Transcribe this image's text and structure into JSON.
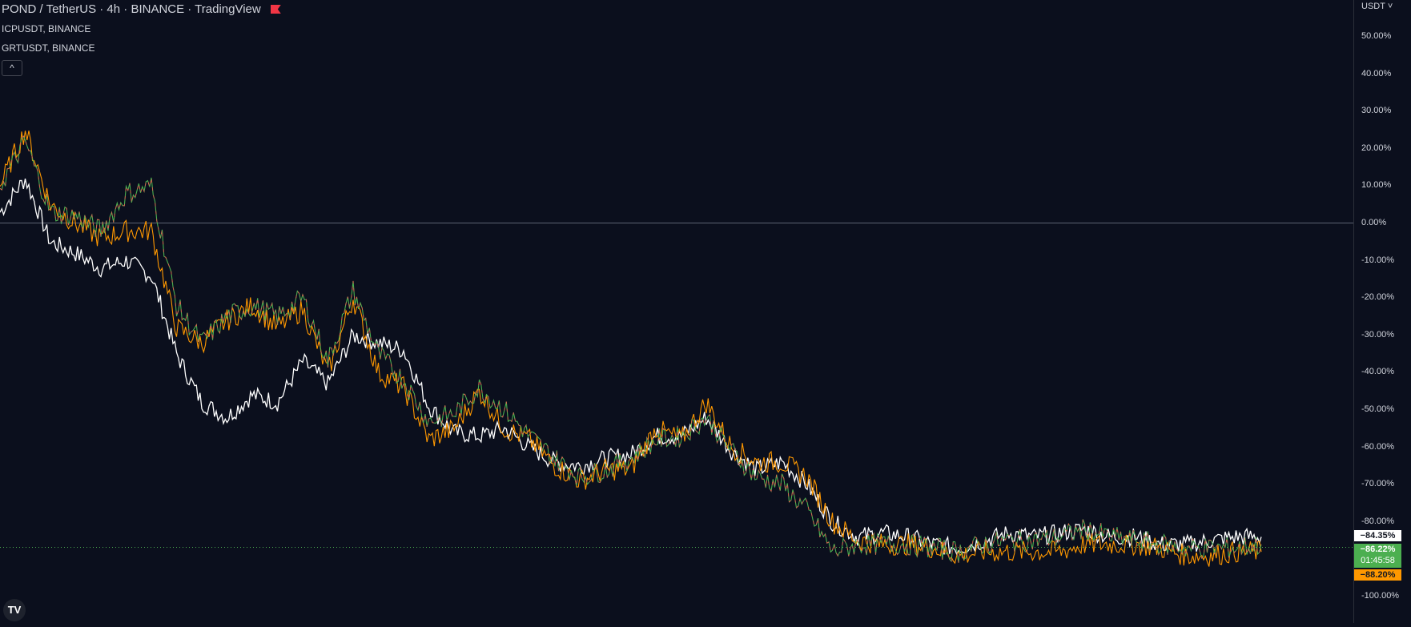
{
  "header": {
    "title": "POND / TetherUS · 4h · BINANCE · TradingView",
    "compare_1": "ICPUSDT, BINANCE",
    "compare_2": "GRTUSDT, BINANCE",
    "collapse_icon": "chevron-up-icon"
  },
  "price_scale": {
    "currency": "USDT",
    "ticks": [
      "50.00%",
      "40.00%",
      "30.00%",
      "20.00%",
      "10.00%",
      "0.00%",
      "-10.00%",
      "-20.00%",
      "-30.00%",
      "-40.00%",
      "-50.00%",
      "-60.00%",
      "-70.00%",
      "-80.00%",
      "-90.00%",
      "-100.00%"
    ]
  },
  "badges": {
    "white": "−84.35%",
    "green": "−86.22%",
    "countdown": "01:45:58",
    "orange": "−88.20%"
  },
  "colors": {
    "background": "#0b0f1d",
    "white_series": "#ffffff",
    "orange_series": "#ff9800",
    "candle_up": "#4caf50",
    "candle_down": "#ef5350",
    "badge_green": "#4caf50",
    "badge_orange": "#ff9800"
  },
  "chart_data": {
    "type": "line",
    "ylim": [
      -100,
      50
    ],
    "ylabel": "",
    "xlabel": "",
    "x": [
      0,
      2,
      4,
      6,
      8,
      10,
      12,
      14,
      16,
      18,
      20,
      22,
      24,
      26,
      28,
      30,
      32,
      34,
      36,
      38,
      40,
      42,
      44,
      46,
      48,
      50,
      52,
      54,
      56,
      58,
      60,
      62,
      64,
      66,
      68,
      70,
      72,
      74,
      76,
      78,
      80,
      82,
      84,
      86,
      88,
      90,
      92,
      94,
      96,
      98,
      100
    ],
    "series": [
      {
        "color": "#ffffff",
        "values": [
          3,
          12,
          -5,
          -8,
          -12,
          -10,
          -14,
          -35,
          -48,
          -52,
          -46,
          -48,
          -37,
          -43,
          -30,
          -32,
          -34,
          -49,
          -56,
          -57,
          -55,
          -60,
          -64,
          -65,
          -63,
          -62,
          -57,
          -57,
          -52,
          -61,
          -66,
          -64,
          -70,
          -80,
          -84,
          -83,
          -84,
          -86,
          -87,
          -85,
          -83,
          -84,
          -83,
          -82,
          -84,
          -84,
          -86,
          -86,
          -85,
          -84,
          -84
        ]
      },
      {
        "color": "#ff9800",
        "values": [
          10,
          25,
          5,
          0,
          -4,
          -2,
          -2,
          -28,
          -32,
          -26,
          -22,
          -28,
          -23,
          -40,
          -20,
          -40,
          -44,
          -58,
          -55,
          -45,
          -55,
          -58,
          -65,
          -69,
          -66,
          -66,
          -55,
          -58,
          -48,
          -60,
          -64,
          -64,
          -68,
          -80,
          -85,
          -86,
          -86,
          -87,
          -89,
          -88,
          -88,
          -88,
          -88,
          -86,
          -86,
          -86,
          -87,
          -89,
          -89,
          -88,
          -88
        ]
      },
      {
        "color": "#4caf50",
        "values": [
          10,
          22,
          3,
          2,
          -2,
          8,
          10,
          -22,
          -32,
          -25,
          -22,
          -25,
          -20,
          -37,
          -18,
          -35,
          -42,
          -53,
          -51,
          -44,
          -50,
          -57,
          -63,
          -68,
          -66,
          -63,
          -58,
          -57,
          -52,
          -61,
          -68,
          -70,
          -77,
          -88,
          -86,
          -86,
          -86,
          -87,
          -88,
          -86,
          -85,
          -85,
          -84,
          -82,
          -84,
          -85,
          -86,
          -87,
          -87,
          -87,
          -86
        ]
      }
    ]
  }
}
